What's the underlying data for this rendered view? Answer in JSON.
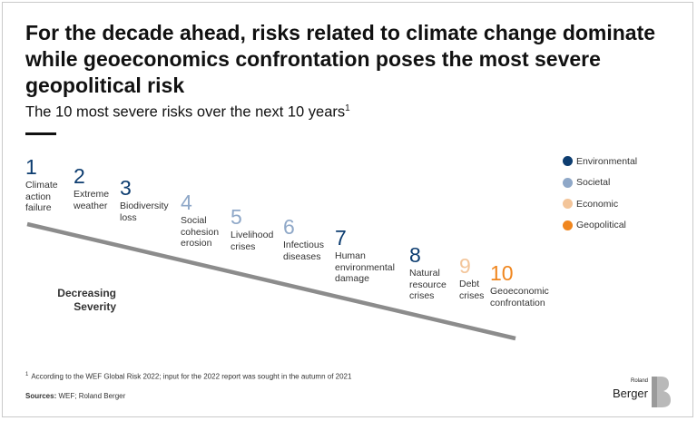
{
  "title": "For the decade ahead, risks related to climate change dominate while geoeconomics confrontation poses the most severe geopolitical risk",
  "subtitle": "The 10 most severe risks over the next 10 years",
  "subtitle_note": "1",
  "risks": [
    {
      "rank": "1",
      "label": "Climate\naction\nfailure",
      "category": "Environmental"
    },
    {
      "rank": "2",
      "label": "Extreme\nweather",
      "category": "Environmental"
    },
    {
      "rank": "3",
      "label": "Biodiversity\nloss",
      "category": "Environmental"
    },
    {
      "rank": "4",
      "label": "Social\ncohesion\nerosion",
      "category": "Societal"
    },
    {
      "rank": "5",
      "label": "Livelihood\ncrises",
      "category": "Societal"
    },
    {
      "rank": "6",
      "label": "Infectious\ndiseases",
      "category": "Societal"
    },
    {
      "rank": "7",
      "label": "Human\nenvironmental\ndamage",
      "category": "Environmental"
    },
    {
      "rank": "8",
      "label": "Natural\nresource\ncrises",
      "category": "Environmental"
    },
    {
      "rank": "9",
      "label": "Debt\ncrises",
      "category": "Economic"
    },
    {
      "rank": "10",
      "label": "Geoeconomic\nconfrontation",
      "category": "Geopolitical"
    }
  ],
  "legend": [
    {
      "label": "Environmental",
      "color": "#0d3d70"
    },
    {
      "label": "Societal",
      "color": "#8fa8c8"
    },
    {
      "label": "Economic",
      "color": "#f3c59a"
    },
    {
      "label": "Geopolitical",
      "color": "#f0861e"
    }
  ],
  "severity_label_1": "Decreasing",
  "severity_label_2": "Severity",
  "footnote_mark": "1",
  "footnote": "According to the WEF Global Risk 2022; input for the 2022 report was sought in the autumn of 2021",
  "sources_label": "Sources:",
  "sources": "WEF; Roland Berger",
  "logo_small": "Roland",
  "logo_big": "Berger"
}
